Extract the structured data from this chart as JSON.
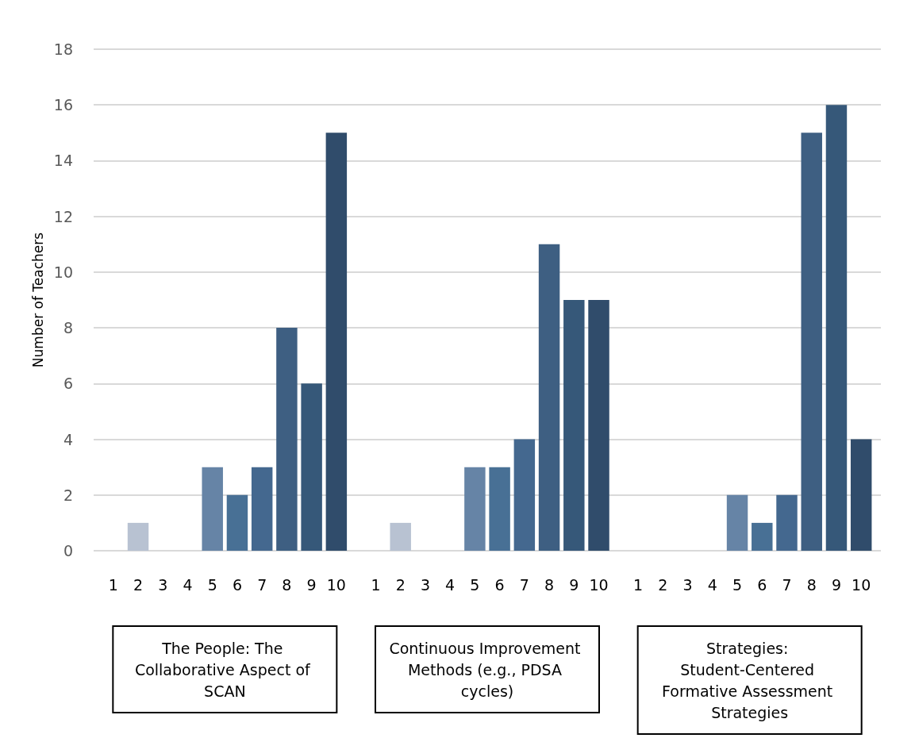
{
  "chart_data": {
    "type": "bar",
    "ylabel": "Number of Teachers",
    "categories": [
      "The People: The Collaborative Aspect of SCAN",
      "Continuous Improvement Methods (e.g., PDSA cycles)",
      "Strategies: Student-Centered Formative Assessment Strategies"
    ],
    "series": [
      {
        "name": "1",
        "values": [
          0,
          0,
          0
        ]
      },
      {
        "name": "2",
        "color": "#b8c2d2",
        "values": [
          1,
          1,
          0
        ]
      },
      {
        "name": "3",
        "values": [
          0,
          0,
          0
        ]
      },
      {
        "name": "4",
        "values": [
          0,
          0,
          0
        ]
      },
      {
        "name": "5",
        "color": "#6684a6",
        "values": [
          3,
          3,
          2
        ]
      },
      {
        "name": "6",
        "color": "#487095",
        "values": [
          2,
          3,
          1
        ]
      },
      {
        "name": "7",
        "color": "#44688f",
        "values": [
          3,
          4,
          2
        ]
      },
      {
        "name": "8",
        "color": "#3e5f82",
        "values": [
          8,
          11,
          15
        ]
      },
      {
        "name": "9",
        "color": "#365879",
        "values": [
          6,
          9,
          16
        ]
      },
      {
        "name": "10",
        "color": "#304c6b",
        "values": [
          15,
          9,
          4
        ]
      }
    ],
    "ylim": [
      0,
      18
    ],
    "yticks": [
      0,
      2,
      4,
      6,
      8,
      10,
      12,
      14,
      16,
      18
    ],
    "grid": "y",
    "legend": false
  }
}
